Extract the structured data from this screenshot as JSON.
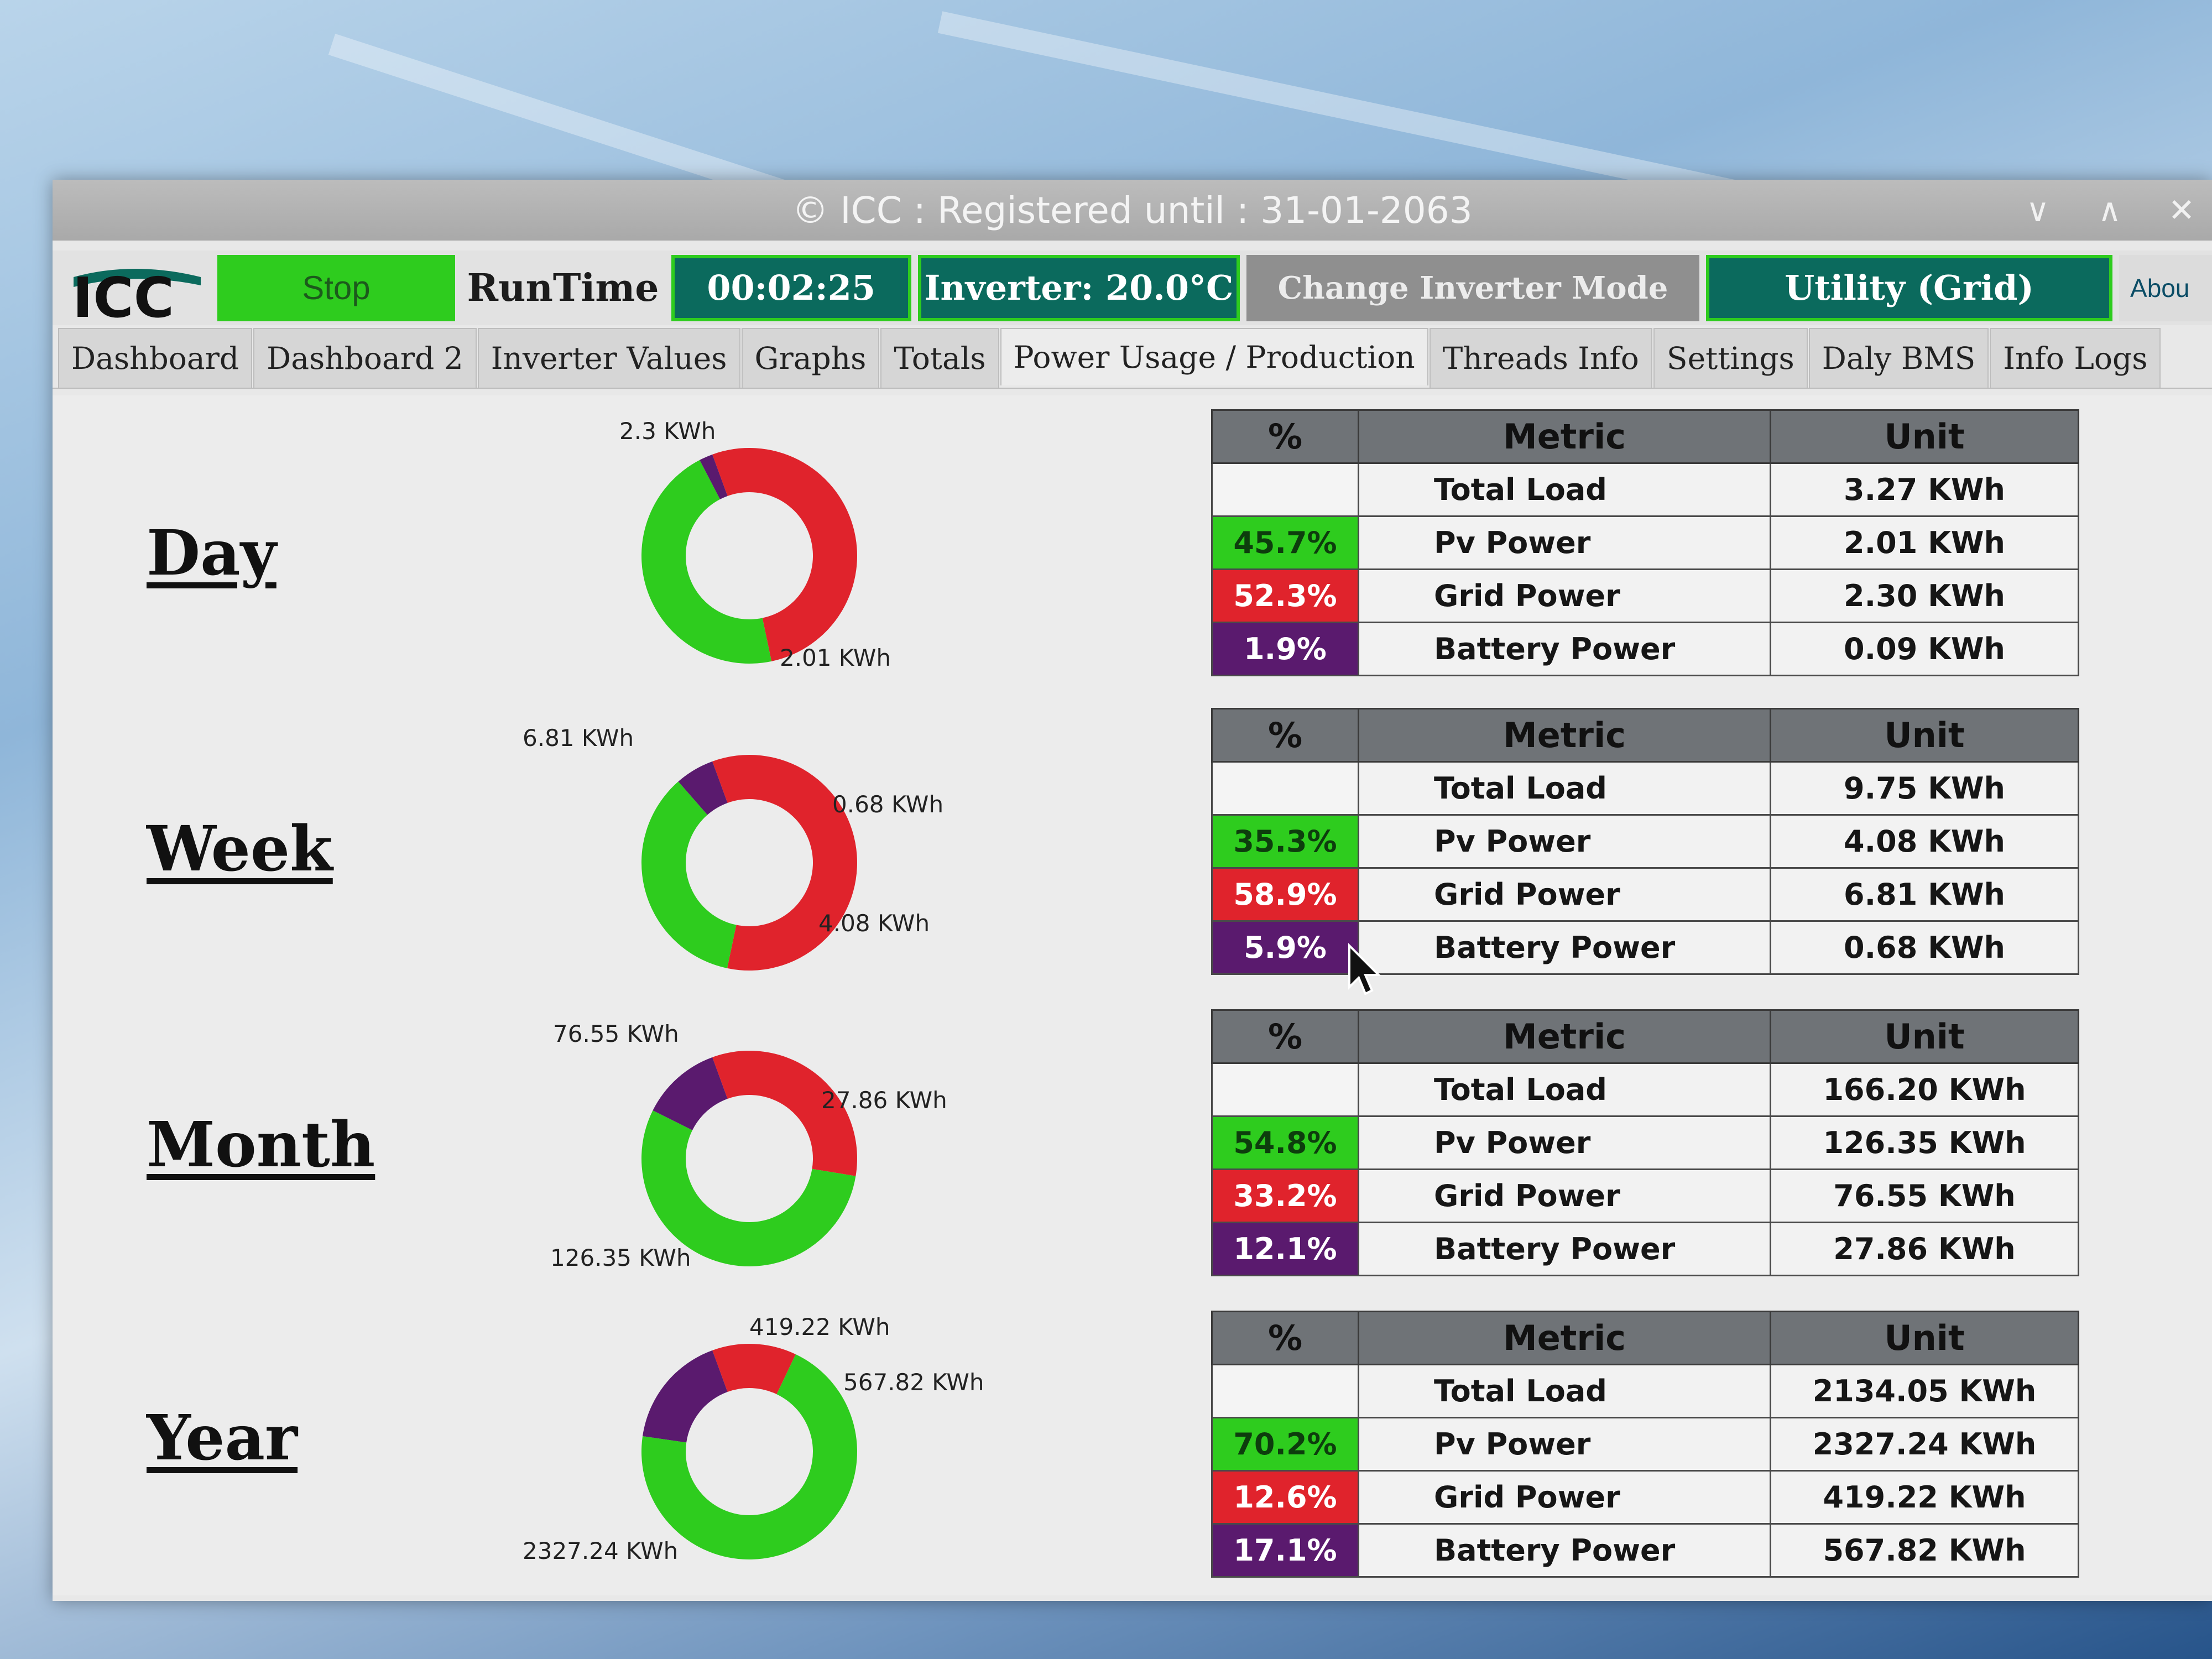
{
  "window": {
    "title": "© ICC : Registered until : 31-01-2063",
    "controls": [
      "chevron-down",
      "chevron-up",
      "close"
    ]
  },
  "toolbar": {
    "logo": "ICC",
    "stop_label": "Stop",
    "runtime_label": "RunTime",
    "runtime_value": "00:02:25",
    "inverter_temp": "Inverter: 20.0°C",
    "change_mode_label": "Change Inverter Mode",
    "utility_label": "Utility (Grid)",
    "about_label": "Abou"
  },
  "tabs": [
    {
      "label": "Dashboard"
    },
    {
      "label": "Dashboard 2"
    },
    {
      "label": "Inverter Values"
    },
    {
      "label": "Graphs"
    },
    {
      "label": "Totals"
    },
    {
      "label": "Power Usage / Production",
      "active": true
    },
    {
      "label": "Threads Info"
    },
    {
      "label": "Settings"
    },
    {
      "label": "Daly BMS"
    },
    {
      "label": "Info Logs"
    }
  ],
  "colors": {
    "pv": "#2ecc1e",
    "grid": "#e0232c",
    "battery": "#5a1a6e",
    "teal": "#0b6a5d"
  },
  "table_headers": {
    "pct": "%",
    "metric": "Metric",
    "unit": "Unit"
  },
  "periods": [
    {
      "name": "Day",
      "chart_labels": {
        "grid": "2.3 KWh",
        "pv": "2.01 KWh",
        "battery": ""
      },
      "rows": [
        {
          "pct": "",
          "metric": "Total Load",
          "unit": "3.27 KWh"
        },
        {
          "pct": "45.7%",
          "metric": "Pv Power",
          "unit": "2.01 KWh"
        },
        {
          "pct": "52.3%",
          "metric": "Grid Power",
          "unit": "2.30 KWh"
        },
        {
          "pct": "1.9%",
          "metric": "Battery Power",
          "unit": "0.09 KWh"
        }
      ]
    },
    {
      "name": "Week",
      "chart_labels": {
        "grid": "6.81 KWh",
        "pv": "4.08 KWh",
        "battery": "0.68 KWh"
      },
      "rows": [
        {
          "pct": "",
          "metric": "Total Load",
          "unit": "9.75 KWh"
        },
        {
          "pct": "35.3%",
          "metric": "Pv Power",
          "unit": "4.08 KWh"
        },
        {
          "pct": "58.9%",
          "metric": "Grid Power",
          "unit": "6.81 KWh"
        },
        {
          "pct": "5.9%",
          "metric": "Battery Power",
          "unit": "0.68 KWh"
        }
      ]
    },
    {
      "name": "Month",
      "chart_labels": {
        "grid": "76.55 KWh",
        "pv": "126.35 KWh",
        "battery": "27.86 KWh"
      },
      "rows": [
        {
          "pct": "",
          "metric": "Total Load",
          "unit": "166.20 KWh"
        },
        {
          "pct": "54.8%",
          "metric": "Pv Power",
          "unit": "126.35 KWh"
        },
        {
          "pct": "33.2%",
          "metric": "Grid Power",
          "unit": "76.55 KWh"
        },
        {
          "pct": "12.1%",
          "metric": "Battery Power",
          "unit": "27.86 KWh"
        }
      ]
    },
    {
      "name": "Year",
      "chart_labels": {
        "grid": "419.22 KWh",
        "pv": "2327.24 KWh",
        "battery": "567.82 KWh"
      },
      "rows": [
        {
          "pct": "",
          "metric": "Total Load",
          "unit": "2134.05 KWh"
        },
        {
          "pct": "70.2%",
          "metric": "Pv Power",
          "unit": "2327.24 KWh"
        },
        {
          "pct": "12.6%",
          "metric": "Grid Power",
          "unit": "419.22 KWh"
        },
        {
          "pct": "17.1%",
          "metric": "Battery Power",
          "unit": "567.82 KWh"
        }
      ]
    }
  ],
  "chart_data": [
    {
      "type": "pie",
      "title": "Day",
      "categories": [
        "Grid Power",
        "Pv Power",
        "Battery Power"
      ],
      "values": [
        2.3,
        2.01,
        0.09
      ],
      "unit": "KWh"
    },
    {
      "type": "pie",
      "title": "Week",
      "categories": [
        "Grid Power",
        "Pv Power",
        "Battery Power"
      ],
      "values": [
        6.81,
        4.08,
        0.68
      ],
      "unit": "KWh"
    },
    {
      "type": "pie",
      "title": "Month",
      "categories": [
        "Grid Power",
        "Pv Power",
        "Battery Power"
      ],
      "values": [
        76.55,
        126.35,
        27.86
      ],
      "unit": "KWh"
    },
    {
      "type": "pie",
      "title": "Year",
      "categories": [
        "Grid Power",
        "Pv Power",
        "Battery Power"
      ],
      "values": [
        419.22,
        2327.24,
        567.82
      ],
      "unit": "KWh"
    }
  ]
}
